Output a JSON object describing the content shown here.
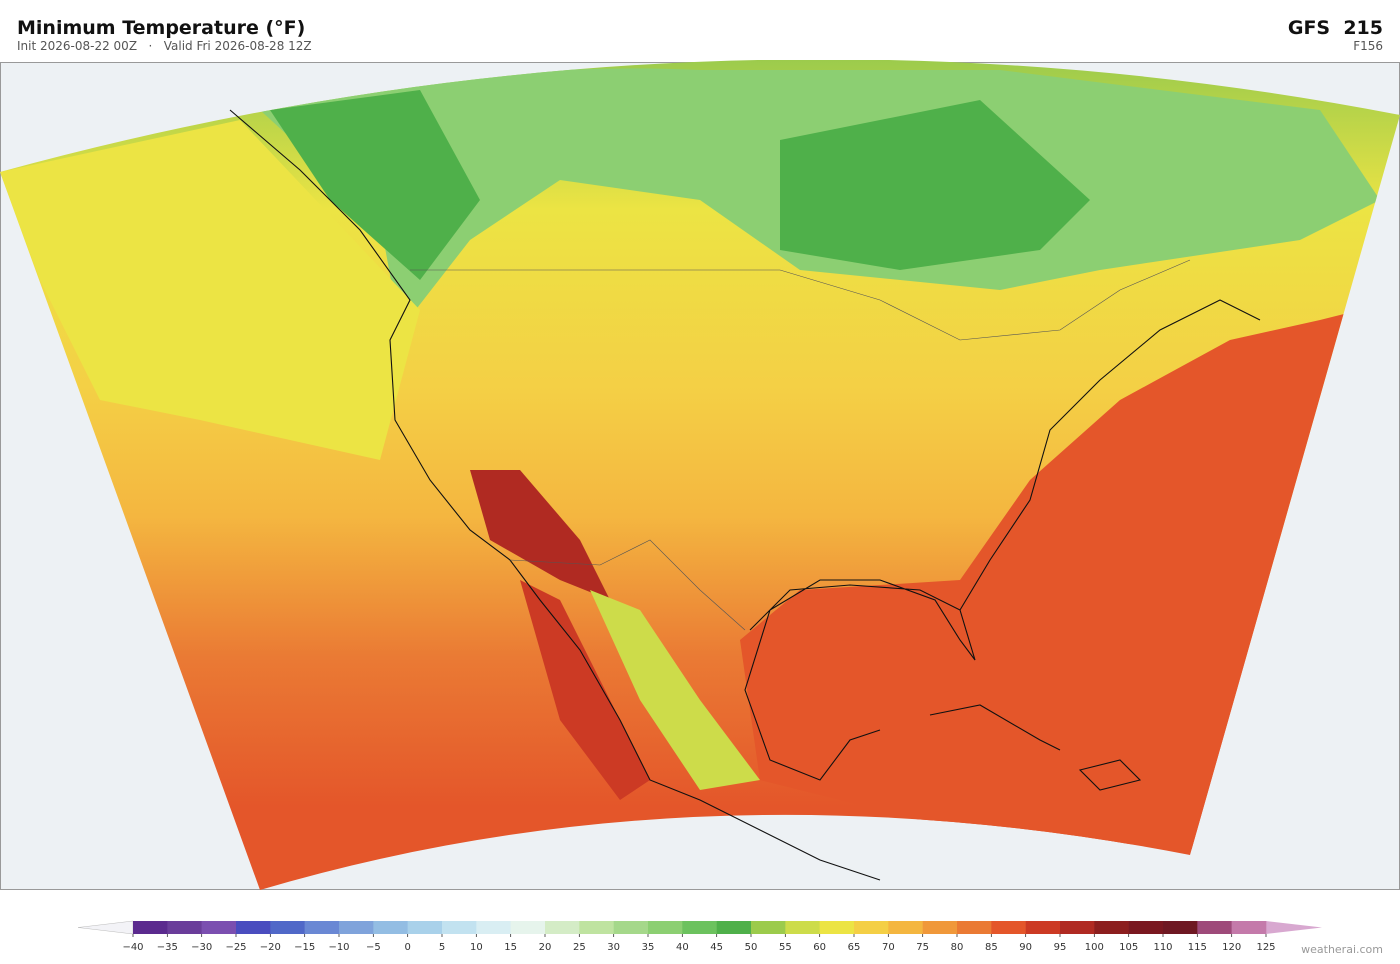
{
  "header": {
    "title": "Minimum Temperature  (°F)",
    "subtitle": "Init 2026-08-22 00Z   ·   Valid Fri 2026-08-28 12Z",
    "model": "GFS  215",
    "forecast_hour": "F156"
  },
  "colorbar": {
    "ticks": [
      {
        "value": -40,
        "label": "−40"
      },
      {
        "value": -35,
        "label": "−35"
      },
      {
        "value": -30,
        "label": "−30"
      },
      {
        "value": -25,
        "label": "−25"
      },
      {
        "value": -20,
        "label": "−20"
      },
      {
        "value": -15,
        "label": "−15"
      },
      {
        "value": -10,
        "label": "−10"
      },
      {
        "value": -5,
        "label": "−5"
      },
      0,
      5,
      10,
      15,
      20,
      25,
      30,
      35,
      40,
      45,
      50,
      55,
      60,
      65,
      70,
      75,
      80,
      85,
      90,
      95,
      100,
      105,
      110,
      115,
      120,
      125
    ],
    "colors": [
      "#5b2a8e",
      "#6a3d9a",
      "#7b4fb0",
      "#4a4dbf",
      "#5068c8",
      "#6a88d4",
      "#7fa3db",
      "#93bde3",
      "#a9d1ea",
      "#c2e2f0",
      "#d9eef3",
      "#e6f4ec",
      "#d4ecc6",
      "#bfe3a0",
      "#a5d88a",
      "#8ccf72",
      "#6cc25e",
      "#4fb04a",
      "#9ccb4c",
      "#cddc4a",
      "#ece444",
      "#f4cf45",
      "#f4b640",
      "#f0983a",
      "#ea7a34",
      "#e4562a",
      "#cc3a24",
      "#b02a22",
      "#8c1e1e",
      "#7a1820",
      "#6e1822",
      "#9e4a7a",
      "#c47aaa"
    ],
    "under_color": "#f3f3f7",
    "over_color": "#d8a8d0"
  },
  "footer": {
    "credit": "weatherai.com"
  }
}
